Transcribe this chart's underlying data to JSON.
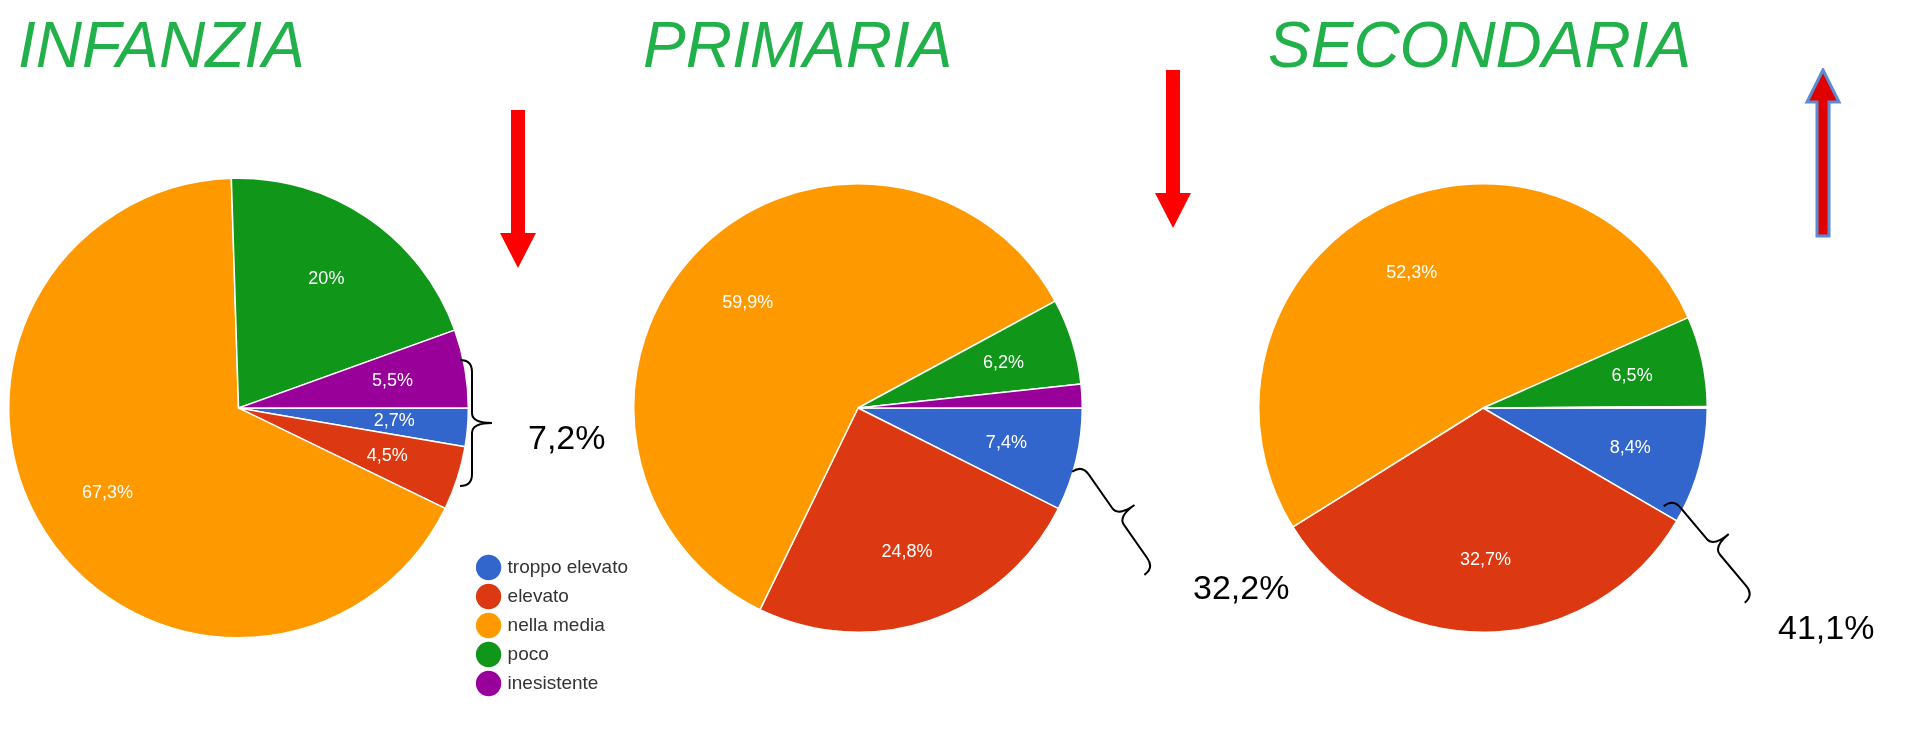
{
  "chart_data": [
    {
      "type": "pie",
      "title": "INFANZIA",
      "categories": [
        "troppo elevato",
        "elevato",
        "nella media",
        "poco",
        "inesistente"
      ],
      "values": [
        2.7,
        4.5,
        67.3,
        20,
        5.5
      ],
      "colors": [
        "#3366cc",
        "#dc3912",
        "#ff9900",
        "#109618",
        "#990099"
      ],
      "value_labels": [
        "2,7%",
        "4,5%",
        "67,3%",
        "20%",
        "5,5%"
      ],
      "legend": "bottom right",
      "annotations": [
        "7,2%"
      ]
    },
    {
      "type": "pie",
      "title": "PRIMARIA",
      "categories": [
        null,
        null,
        null,
        null,
        null
      ],
      "values": [
        7.4,
        24.8,
        59.9,
        6.2,
        1.7
      ],
      "colors": [
        "#3366cc",
        "#dc3912",
        "#ff9900",
        "#109618",
        "#990099"
      ],
      "value_labels": [
        "7,4%",
        "24,8%",
        "59,9%",
        "6,2%",
        null
      ],
      "annotations": [
        "32,2%"
      ]
    },
    {
      "type": "pie",
      "title": "SECONDARIA",
      "categories": [
        null,
        null,
        null,
        null,
        null
      ],
      "values": [
        8.4,
        32.7,
        52.3,
        6.5,
        0.1
      ],
      "colors": [
        "#3366cc",
        "#dc3912",
        "#ff9900",
        "#109618",
        "#990099"
      ],
      "value_labels": [
        "8,4%",
        "32,7%",
        "52,3%",
        "6,5%",
        null
      ],
      "annotations": [
        "41,1%"
      ]
    }
  ]
}
